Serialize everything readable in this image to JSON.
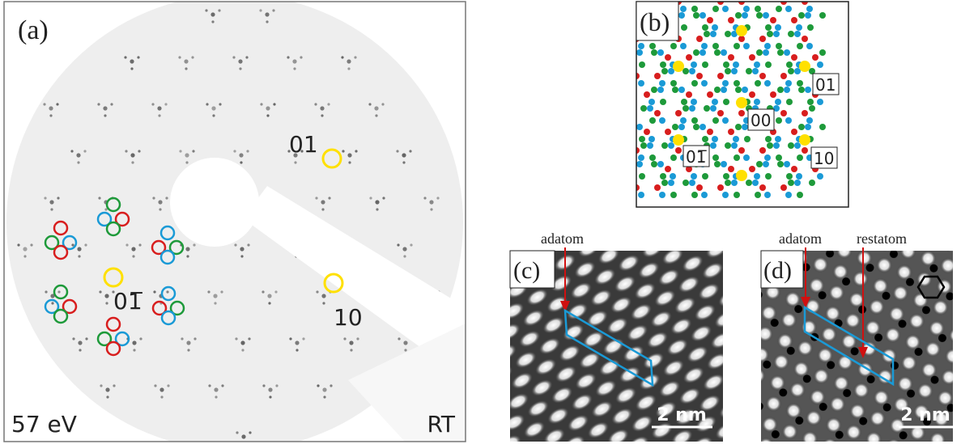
{
  "panels": [
    {
      "label": "(a)",
      "spot_labels": [
        "01",
        "10",
        "01̅"
      ],
      "energy": "57 eV",
      "temperature": "RT"
    },
    {
      "label": "(b)",
      "spot_labels": [
        "01",
        "00",
        "01̅",
        "10"
      ]
    },
    {
      "label": "(c)",
      "annotations": [
        "adatom"
      ],
      "scale_bar": "2 nm"
    },
    {
      "label": "(d)",
      "annotations": [
        "adatom",
        "restatom"
      ],
      "scale_bar": "2 nm"
    }
  ]
}
